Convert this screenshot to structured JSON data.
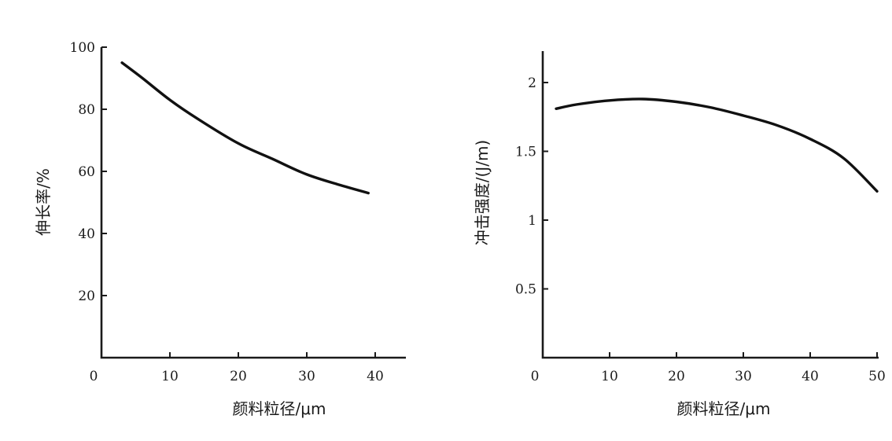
{
  "chart_data": [
    {
      "type": "line",
      "xlabel": "颜料粒径/μm",
      "ylabel": "伸长率/%",
      "xlim": [
        0,
        45
      ],
      "ylim": [
        0,
        100
      ],
      "x_ticks": [
        "0",
        "10",
        "20",
        "30",
        "40"
      ],
      "y_ticks": [
        "20",
        "40",
        "60",
        "80",
        "100"
      ],
      "grid": false,
      "series": [
        {
          "x": [
            3,
            6,
            10,
            14,
            20,
            25,
            30,
            35,
            39
          ],
          "y": [
            95,
            90,
            83,
            77,
            69,
            64,
            59,
            55.5,
            53
          ],
          "color": "#111111"
        }
      ]
    },
    {
      "type": "line",
      "xlabel": "颜料粒径/μm",
      "ylabel": "冲击强度/(J/m)",
      "xlim": [
        0,
        50
      ],
      "ylim": [
        0,
        2.2
      ],
      "x_ticks": [
        "0",
        "10",
        "20",
        "30",
        "40",
        "50"
      ],
      "y_ticks": [
        "0.5",
        "1",
        "1.5",
        "2"
      ],
      "grid": false,
      "series": [
        {
          "x": [
            2,
            5,
            10,
            15,
            20,
            25,
            30,
            35,
            40,
            45,
            50
          ],
          "y": [
            1.81,
            1.84,
            1.87,
            1.88,
            1.86,
            1.82,
            1.76,
            1.69,
            1.59,
            1.45,
            1.21
          ],
          "color": "#111111"
        }
      ]
    }
  ]
}
